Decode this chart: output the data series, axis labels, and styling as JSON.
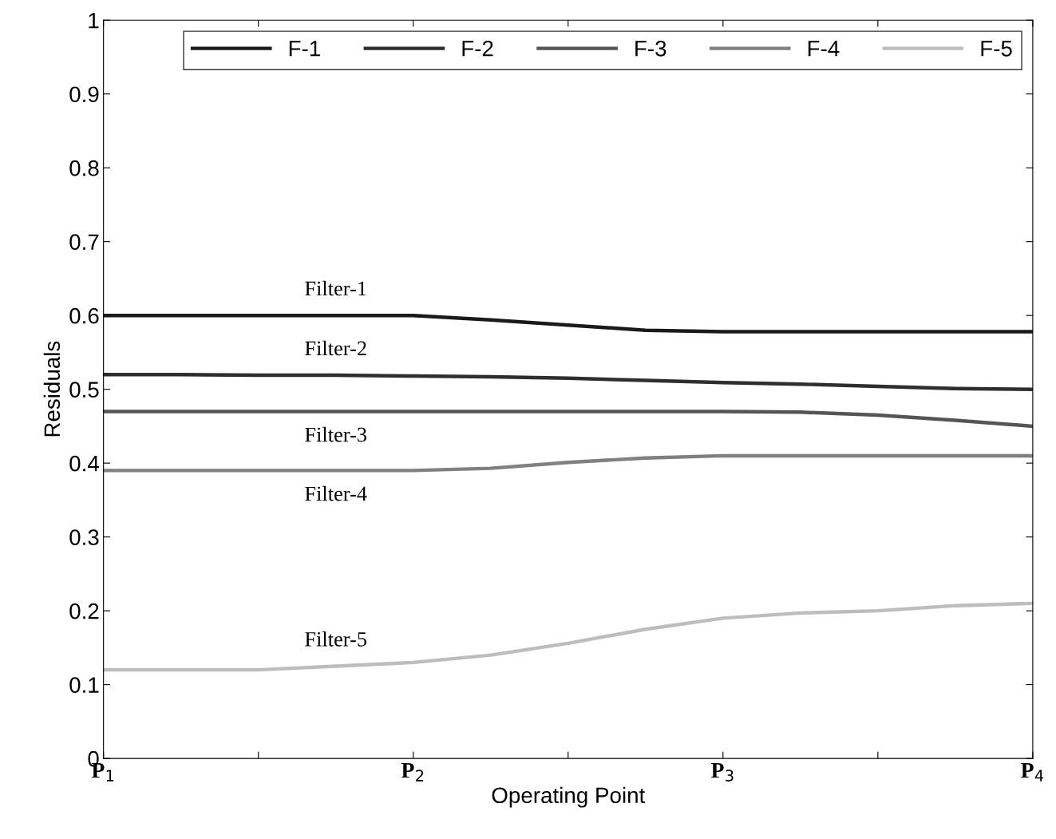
{
  "chart_data": {
    "type": "line",
    "xlabel": "Operating Point",
    "ylabel": "Residuals",
    "ylim": [
      0,
      1
    ],
    "yticks": [
      0,
      0.1,
      0.2,
      0.3,
      0.4,
      0.5,
      0.6,
      0.7,
      0.8,
      0.9,
      1
    ],
    "categories": [
      "P$_{1}$",
      null,
      null,
      null,
      "P$_{2}$",
      null,
      null,
      null,
      "P$_{3}$",
      null,
      null,
      null,
      "P$_{4}$"
    ],
    "series": [
      {
        "name": "F-1",
        "color": "#1a1a1a",
        "values": [
          0.6,
          0.6,
          0.6,
          0.6,
          0.6,
          0.594,
          0.587,
          0.58,
          0.578,
          0.578,
          0.578,
          0.578,
          0.578
        ]
      },
      {
        "name": "F-2",
        "color": "#2e2e2e",
        "values": [
          0.52,
          0.52,
          0.519,
          0.519,
          0.518,
          0.517,
          0.515,
          0.512,
          0.509,
          0.507,
          0.504,
          0.501,
          0.5
        ]
      },
      {
        "name": "F-3",
        "color": "#555555",
        "values": [
          0.47,
          0.47,
          0.47,
          0.47,
          0.47,
          0.47,
          0.47,
          0.47,
          0.47,
          0.469,
          0.465,
          0.458,
          0.45
        ]
      },
      {
        "name": "F-4",
        "color": "#808080",
        "values": [
          0.39,
          0.39,
          0.39,
          0.39,
          0.39,
          0.393,
          0.401,
          0.407,
          0.41,
          0.41,
          0.41,
          0.41,
          0.41
        ]
      },
      {
        "name": "F-5",
        "color": "#bdbdbd",
        "values": [
          0.12,
          0.12,
          0.12,
          0.125,
          0.13,
          0.14,
          0.156,
          0.175,
          0.19,
          0.197,
          0.2,
          0.207,
          0.21
        ]
      }
    ],
    "annotations": [
      "Filter-1",
      "Filter-2",
      "Filter-3",
      "Filter-4",
      "Filter-5"
    ],
    "legend": "top right",
    "grid": false,
    "line_style": "solid",
    "marker": "none"
  }
}
